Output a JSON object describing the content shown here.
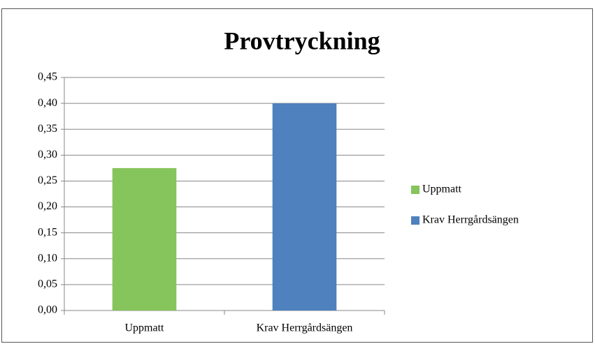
{
  "chart_data": {
    "type": "bar",
    "title": "Provtryckning",
    "categories": [
      "Uppmatt",
      "Krav Herrgårdsängen"
    ],
    "values": [
      0.275,
      0.4
    ],
    "colors": [
      "#86c45c",
      "#4e81bd"
    ],
    "ylim": [
      0,
      0.45
    ],
    "yticks": [
      {
        "value": 0,
        "label": "0,00"
      },
      {
        "value": 0.05,
        "label": "0,05"
      },
      {
        "value": 0.1,
        "label": "0,10"
      },
      {
        "value": 0.15,
        "label": "0,15"
      },
      {
        "value": 0.2,
        "label": "0,20"
      },
      {
        "value": 0.25,
        "label": "0,25"
      },
      {
        "value": 0.3,
        "label": "0,30"
      },
      {
        "value": 0.35,
        "label": "0,35"
      },
      {
        "value": 0.4,
        "label": "0,40"
      },
      {
        "value": 0.45,
        "label": "0,45"
      }
    ],
    "grid": true,
    "legend": "right"
  }
}
